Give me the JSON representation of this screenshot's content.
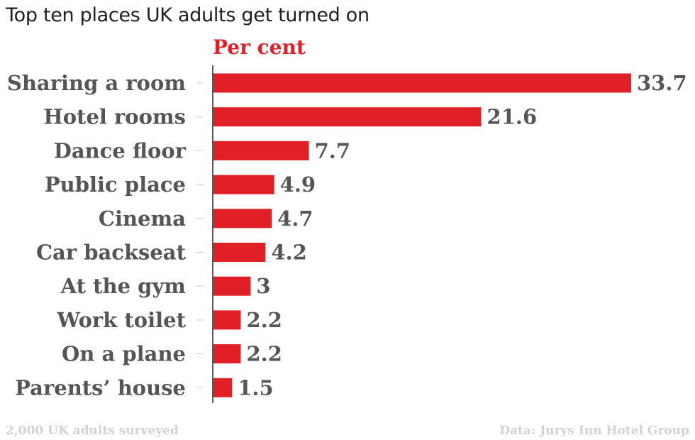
{
  "chart_data": {
    "type": "bar",
    "orientation": "horizontal",
    "title": "Top ten places UK adults get turned on",
    "series_label": "Per cent",
    "categories": [
      "Sharing a room",
      "Hotel rooms",
      "Dance floor",
      "Public place",
      "Cinema",
      "Car backseat",
      "At the gym",
      "Work toilet",
      "On a plane",
      "Parents’ house"
    ],
    "values": [
      33.7,
      21.6,
      7.7,
      4.9,
      4.7,
      4.2,
      3,
      2.2,
      2.2,
      1.5
    ],
    "value_labels": [
      "33.7",
      "21.6",
      "7.7",
      "4.9",
      "4.7",
      "4.2",
      "3",
      "2.2",
      "2.2",
      "1.5"
    ],
    "xlim": [
      0,
      33.7
    ],
    "grid": false,
    "bar_color": "#e01f26",
    "label_color": "#555555"
  },
  "footer": {
    "left": "2,000 UK adults surveyed",
    "right": "Data: Jurys Inn Hotel Group"
  }
}
